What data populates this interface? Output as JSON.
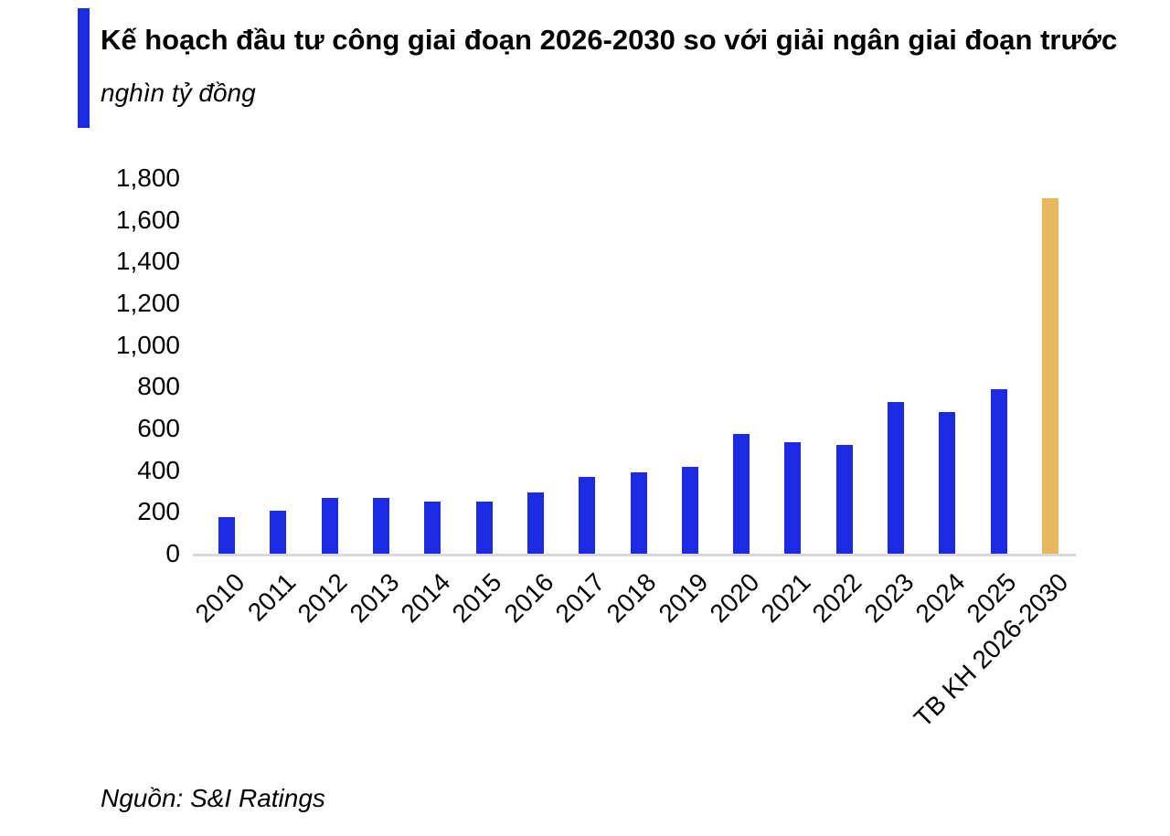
{
  "header": {
    "title": "Kế hoạch đầu tư công giai đoạn 2026-2030 so với giải ngân giai đoạn trước",
    "subtitle": "nghìn tỷ đồng",
    "accent_color": "#1c2be2"
  },
  "chart_data": {
    "type": "bar",
    "title": "Kế hoạch đầu tư công giai đoạn 2026-2030 so với giải ngân giai đoạn trước",
    "unit_label": "nghìn tỷ đồng",
    "categories": [
      "2010",
      "2011",
      "2012",
      "2013",
      "2014",
      "2015",
      "2016",
      "2017",
      "2018",
      "2019",
      "2020",
      "2021",
      "2022",
      "2023",
      "2024",
      "2025",
      "TB KH 2026-2030"
    ],
    "values": [
      175,
      205,
      265,
      267,
      248,
      250,
      292,
      370,
      390,
      418,
      572,
      535,
      520,
      725,
      678,
      790,
      1705
    ],
    "highlight_category": "TB KH 2026-2030",
    "default_bar_color": "#1c2be2",
    "highlight_bar_color": "#e8b85c",
    "ylim": [
      0,
      1800
    ],
    "ytick_step": 200,
    "ytick_labels": [
      "0",
      "200",
      "400",
      "600",
      "800",
      "1,000",
      "1,200",
      "1,400",
      "1,600",
      "1,800"
    ],
    "grid": false,
    "legend": "none",
    "axis_line_color": "#d9d9d9",
    "xlabel": "",
    "ylabel": ""
  },
  "footer": {
    "source": "Nguồn: S&I Ratings"
  }
}
